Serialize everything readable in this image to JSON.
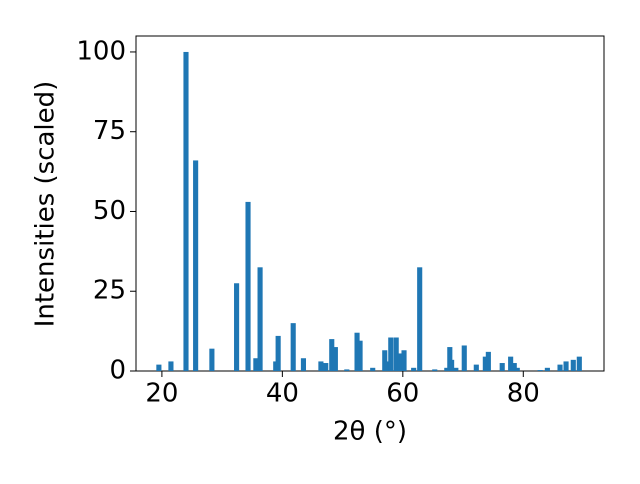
{
  "chart_data": {
    "type": "bar",
    "xlabel": "2θ (°)",
    "ylabel": "Intensities (scaled)",
    "x": [
      19.5,
      21.5,
      24.0,
      25.6,
      28.3,
      32.4,
      34.3,
      35.6,
      36.3,
      38.9,
      39.3,
      41.8,
      43.5,
      46.4,
      47.2,
      48.2,
      48.8,
      50.7,
      52.4,
      52.9,
      55.0,
      57.0,
      57.4,
      58.0,
      58.9,
      59.5,
      60.2,
      61.8,
      62.8,
      65.3,
      67.3,
      67.8,
      68.1,
      68.8,
      70.2,
      72.2,
      73.7,
      74.2,
      76.5,
      77.9,
      78.5,
      79.0,
      82.8,
      84.0,
      86.1,
      87.1,
      88.3,
      89.3
    ],
    "values": [
      2,
      3,
      100,
      66,
      7,
      27.5,
      53,
      4,
      32.5,
      3,
      11,
      15,
      4,
      3,
      2.5,
      10,
      7.5,
      0.5,
      12,
      9.5,
      1,
      6.5,
      3,
      10.5,
      10.5,
      5.5,
      6.5,
      1,
      32.5,
      0.5,
      1,
      7.5,
      3.5,
      1,
      8,
      2,
      4.5,
      6,
      2.5,
      4.5,
      2.5,
      1,
      0.3,
      1,
      2,
      3,
      3.5,
      4.5
    ],
    "color": "#1f77b4",
    "xlim": [
      15.7,
      93.4
    ],
    "ylim": [
      0,
      105
    ],
    "xticks": [
      20,
      40,
      60,
      80
    ],
    "yticks": [
      0,
      25,
      50,
      75,
      100
    ]
  }
}
